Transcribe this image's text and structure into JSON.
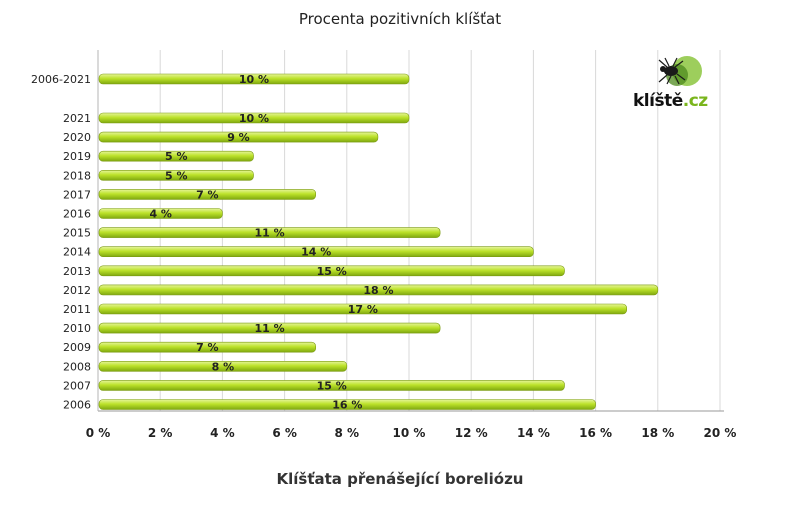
{
  "chart_data": {
    "type": "bar",
    "orientation": "horizontal",
    "title": "Procenta pozitivních klíšťat",
    "caption": "Klíšťata přenášející boreliózu",
    "categories": [
      "2006-2021",
      "2021",
      "2020",
      "2019",
      "2018",
      "2017",
      "2016",
      "2015",
      "2014",
      "2013",
      "2012",
      "2011",
      "2010",
      "2009",
      "2008",
      "2007",
      "2006"
    ],
    "values": [
      10,
      10,
      9,
      5,
      5,
      7,
      4,
      11,
      14,
      15,
      18,
      17,
      11,
      7,
      8,
      15,
      16
    ],
    "value_labels": [
      "10 %",
      "10 %",
      "9 %",
      "5 %",
      "5 %",
      "7 %",
      "4 %",
      "11 %",
      "14 %",
      "15 %",
      "18 %",
      "17 %",
      "11 %",
      "7 %",
      "8 %",
      "15 %",
      "16 %"
    ],
    "x_ticks": [
      "0 %",
      "2 %",
      "4 %",
      "6 %",
      "8 %",
      "10 %",
      "12 %",
      "14 %",
      "16 %",
      "18 %",
      "20 %"
    ],
    "xlim": [
      0,
      20
    ],
    "grid": true,
    "bar_color": "#b7df1d"
  },
  "logo": {
    "name": "klíště",
    "suffix": ".cz",
    "icon": "tick-icon"
  }
}
